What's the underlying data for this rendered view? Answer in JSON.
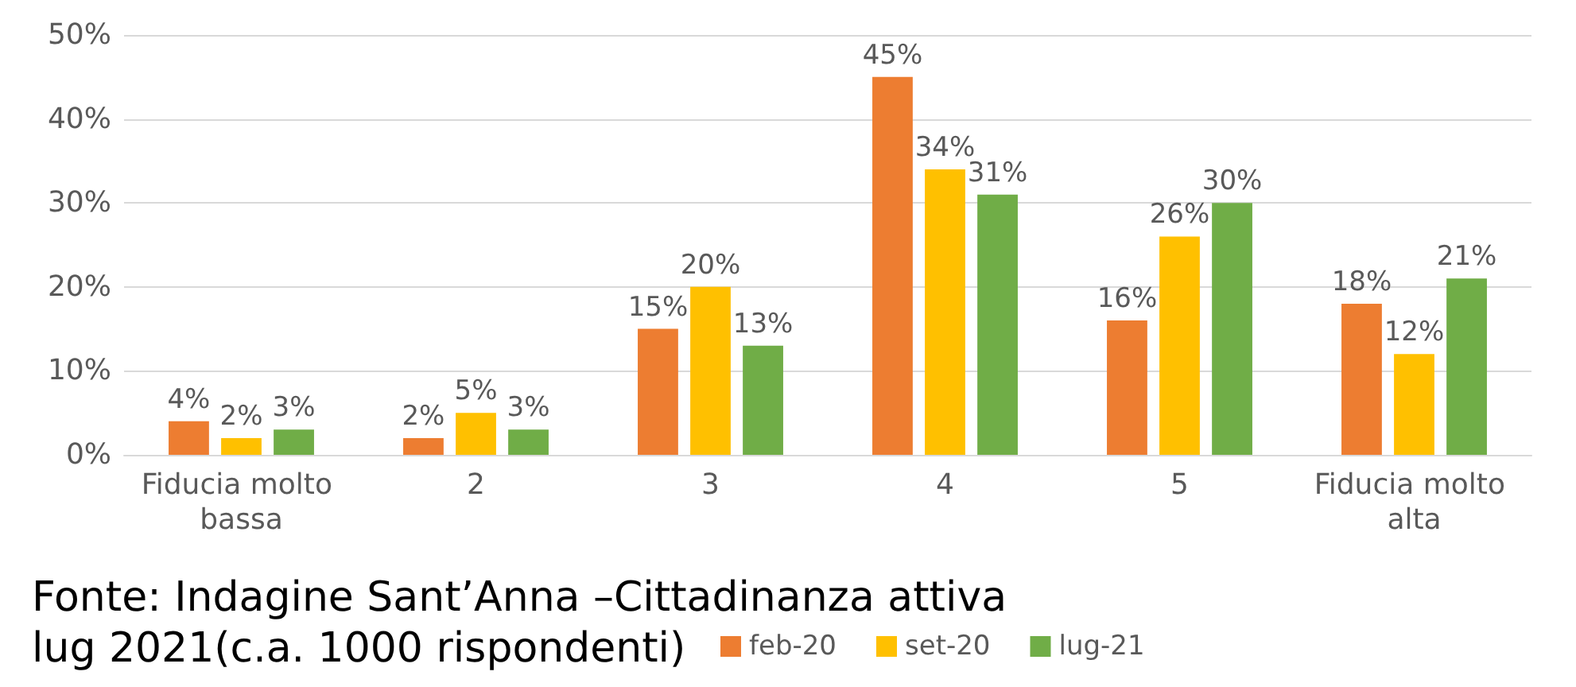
{
  "chart_data": {
    "type": "bar",
    "categories": [
      "Fiducia molto bassa",
      "2",
      "3",
      "4",
      "5",
      "Fiducia molto alta"
    ],
    "series": [
      {
        "name": "feb-20",
        "color": "#ed7d31",
        "values": [
          4,
          2,
          15,
          45,
          16,
          18
        ],
        "value_labels": [
          "4%",
          "2%",
          "15%",
          "45%",
          "16%",
          "18%"
        ]
      },
      {
        "name": "set-20",
        "color": "#ffc000",
        "values": [
          2,
          5,
          20,
          34,
          26,
          12
        ],
        "value_labels": [
          "2%",
          "5%",
          "20%",
          "34%",
          "26%",
          "12%"
        ]
      },
      {
        "name": "lug-21",
        "color": "#70ad47",
        "values": [
          3,
          3,
          13,
          31,
          30,
          21
        ],
        "value_labels": [
          "3%",
          "3%",
          "13%",
          "31%",
          "30%",
          "21%"
        ]
      }
    ],
    "ylim": [
      0,
      50
    ],
    "yticks": [
      {
        "value": 0,
        "label": "0%"
      },
      {
        "value": 10,
        "label": "10%"
      },
      {
        "value": 20,
        "label": "20%"
      },
      {
        "value": 30,
        "label": "30%"
      },
      {
        "value": 40,
        "label": "40%"
      },
      {
        "value": 50,
        "label": "50%"
      }
    ],
    "grid": "y",
    "legend": "bottom",
    "annotations": [
      "Fonte: Indagine Sant’Anna –Cittadinanza attiva lug 2021(c.a. 1000 rispondenti)"
    ]
  }
}
